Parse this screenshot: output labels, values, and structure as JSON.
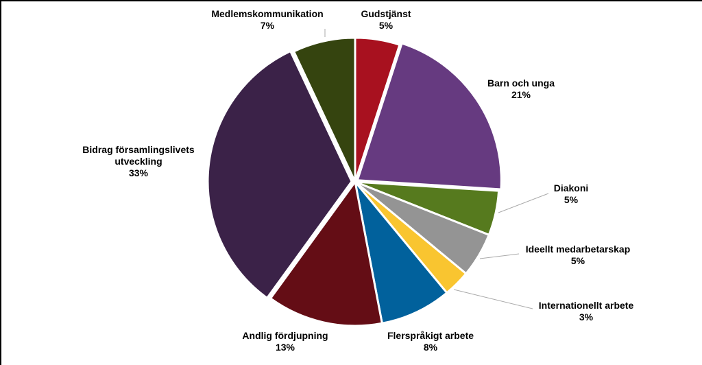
{
  "chart_data": {
    "type": "pie",
    "categories": [
      "Gudstjänst",
      "Barn och unga",
      "Diakoni",
      "Ideellt medarbetarskap",
      "Internationellt arbete",
      "Flerspråkigt arbete",
      "Andlig fördjupning",
      "Bidrag församlingslivets utveckling",
      "Medlemskommunikation"
    ],
    "values": [
      5,
      21,
      5,
      5,
      3,
      8,
      13,
      33,
      7
    ],
    "value_labels": [
      "5%",
      "21%",
      "5%",
      "5%",
      "3%",
      "8%",
      "13%",
      "33%",
      "7%"
    ],
    "colors": [
      "#a8111f",
      "#663a80",
      "#567a1e",
      "#949494",
      "#f9c530",
      "#01619c",
      "#640d15",
      "#3b2248",
      "#35440f"
    ]
  }
}
